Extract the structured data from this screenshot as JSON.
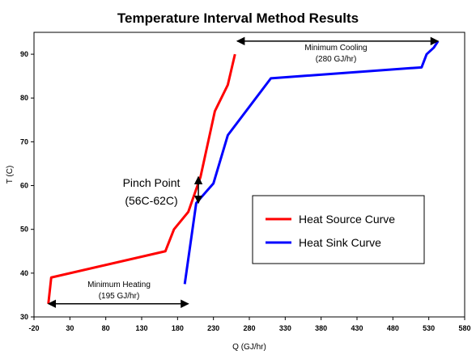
{
  "chart_data": {
    "type": "line",
    "title": "Temperature Interval Method Results",
    "xlabel": "Q  (GJ/hr)",
    "ylabel": "T  (C)",
    "xlim": [
      -20,
      580
    ],
    "ylim": [
      30,
      95
    ],
    "x_ticks": [
      -20,
      30,
      80,
      130,
      180,
      230,
      280,
      330,
      380,
      430,
      480,
      530,
      580
    ],
    "y_ticks": [
      30,
      40,
      50,
      60,
      70,
      80,
      90
    ],
    "grid": false,
    "legend_position": "center-right",
    "series": [
      {
        "name": "Heat Source Curve",
        "color": "#ff0000",
        "points": [
          [
            0,
            33
          ],
          [
            4,
            39
          ],
          [
            163,
            45
          ],
          [
            175,
            50
          ],
          [
            195,
            54
          ],
          [
            212,
            62
          ],
          [
            232,
            77
          ],
          [
            250,
            83
          ],
          [
            260,
            90
          ]
        ]
      },
      {
        "name": "Heat Sink Curve",
        "color": "#0000ff",
        "points": [
          [
            190,
            37.5
          ],
          [
            206,
            56
          ],
          [
            230,
            60.5
          ],
          [
            250,
            71.5
          ],
          [
            310,
            84.5
          ],
          [
            520,
            87
          ],
          [
            527,
            90
          ],
          [
            537,
            91.5
          ],
          [
            543,
            93
          ]
        ]
      }
    ],
    "annotations": {
      "pinch_label": "Pinch Point",
      "pinch_range": "(56C-62C)",
      "cooling_label": "Minimum Cooling",
      "cooling_value": "(280 GJ/hr)",
      "heating_label": "Minimum Heating",
      "heating_value": "(195 GJ/hr)"
    },
    "annotation_arrows": {
      "cooling_q": [
        263,
        543
      ],
      "cooling_t": 93,
      "heating_q": [
        0,
        195
      ],
      "heating_t": 33,
      "pinch_q": 209,
      "pinch_t": [
        56,
        62
      ]
    }
  }
}
